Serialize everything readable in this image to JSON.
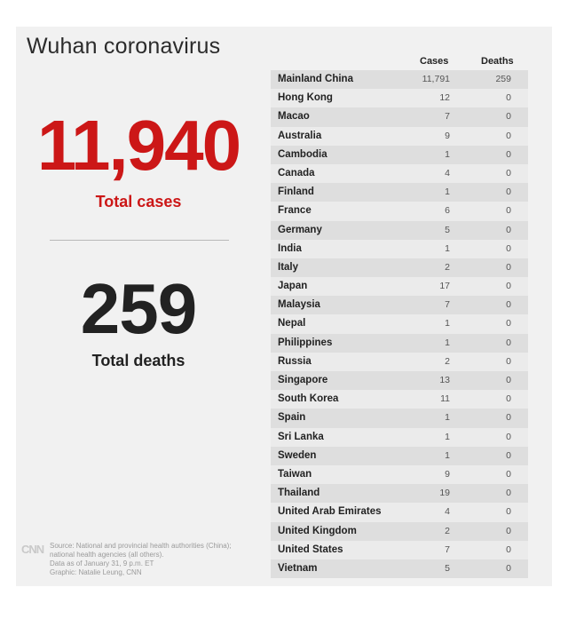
{
  "title": "Wuhan coronavirus",
  "total_cases": "11,940",
  "total_cases_label": "Total cases",
  "total_deaths": "259",
  "total_deaths_label": "Total deaths",
  "source": {
    "logo": "CNN",
    "lines": [
      "Source: National and provincial health authorities (China);",
      "national health agencies (all others).",
      "Data as of January 31, 9 p.m. ET",
      "Graphic: Natalie Leung, CNN"
    ]
  },
  "colors": {
    "accent": "#cc1717",
    "panel": "#f1f1f1",
    "row_dark": "#dedede",
    "row_light": "#ebebeb"
  },
  "chart_data": {
    "type": "table",
    "columns": [
      "Cases",
      "Deaths"
    ],
    "rows": [
      {
        "country": "Mainland China",
        "cases": "11,791",
        "deaths": "259"
      },
      {
        "country": "Hong Kong",
        "cases": "12",
        "deaths": "0"
      },
      {
        "country": "Macao",
        "cases": "7",
        "deaths": "0"
      },
      {
        "country": "Australia",
        "cases": "9",
        "deaths": "0"
      },
      {
        "country": "Cambodia",
        "cases": "1",
        "deaths": "0"
      },
      {
        "country": "Canada",
        "cases": "4",
        "deaths": "0"
      },
      {
        "country": "Finland",
        "cases": "1",
        "deaths": "0"
      },
      {
        "country": "France",
        "cases": "6",
        "deaths": "0"
      },
      {
        "country": "Germany",
        "cases": "5",
        "deaths": "0"
      },
      {
        "country": "India",
        "cases": "1",
        "deaths": "0"
      },
      {
        "country": "Italy",
        "cases": "2",
        "deaths": "0"
      },
      {
        "country": "Japan",
        "cases": "17",
        "deaths": "0"
      },
      {
        "country": "Malaysia",
        "cases": "7",
        "deaths": "0"
      },
      {
        "country": "Nepal",
        "cases": "1",
        "deaths": "0"
      },
      {
        "country": "Philippines",
        "cases": "1",
        "deaths": "0"
      },
      {
        "country": "Russia",
        "cases": "2",
        "deaths": "0"
      },
      {
        "country": "Singapore",
        "cases": "13",
        "deaths": "0"
      },
      {
        "country": "South Korea",
        "cases": "11",
        "deaths": "0"
      },
      {
        "country": "Spain",
        "cases": "1",
        "deaths": "0"
      },
      {
        "country": "Sri Lanka",
        "cases": "1",
        "deaths": "0"
      },
      {
        "country": "Sweden",
        "cases": "1",
        "deaths": "0"
      },
      {
        "country": "Taiwan",
        "cases": "9",
        "deaths": "0"
      },
      {
        "country": "Thailand",
        "cases": "19",
        "deaths": "0"
      },
      {
        "country": "United Arab Emirates",
        "cases": "4",
        "deaths": "0"
      },
      {
        "country": "United Kingdom",
        "cases": "2",
        "deaths": "0"
      },
      {
        "country": "United States",
        "cases": "7",
        "deaths": "0"
      },
      {
        "country": "Vietnam",
        "cases": "5",
        "deaths": "0"
      }
    ]
  }
}
